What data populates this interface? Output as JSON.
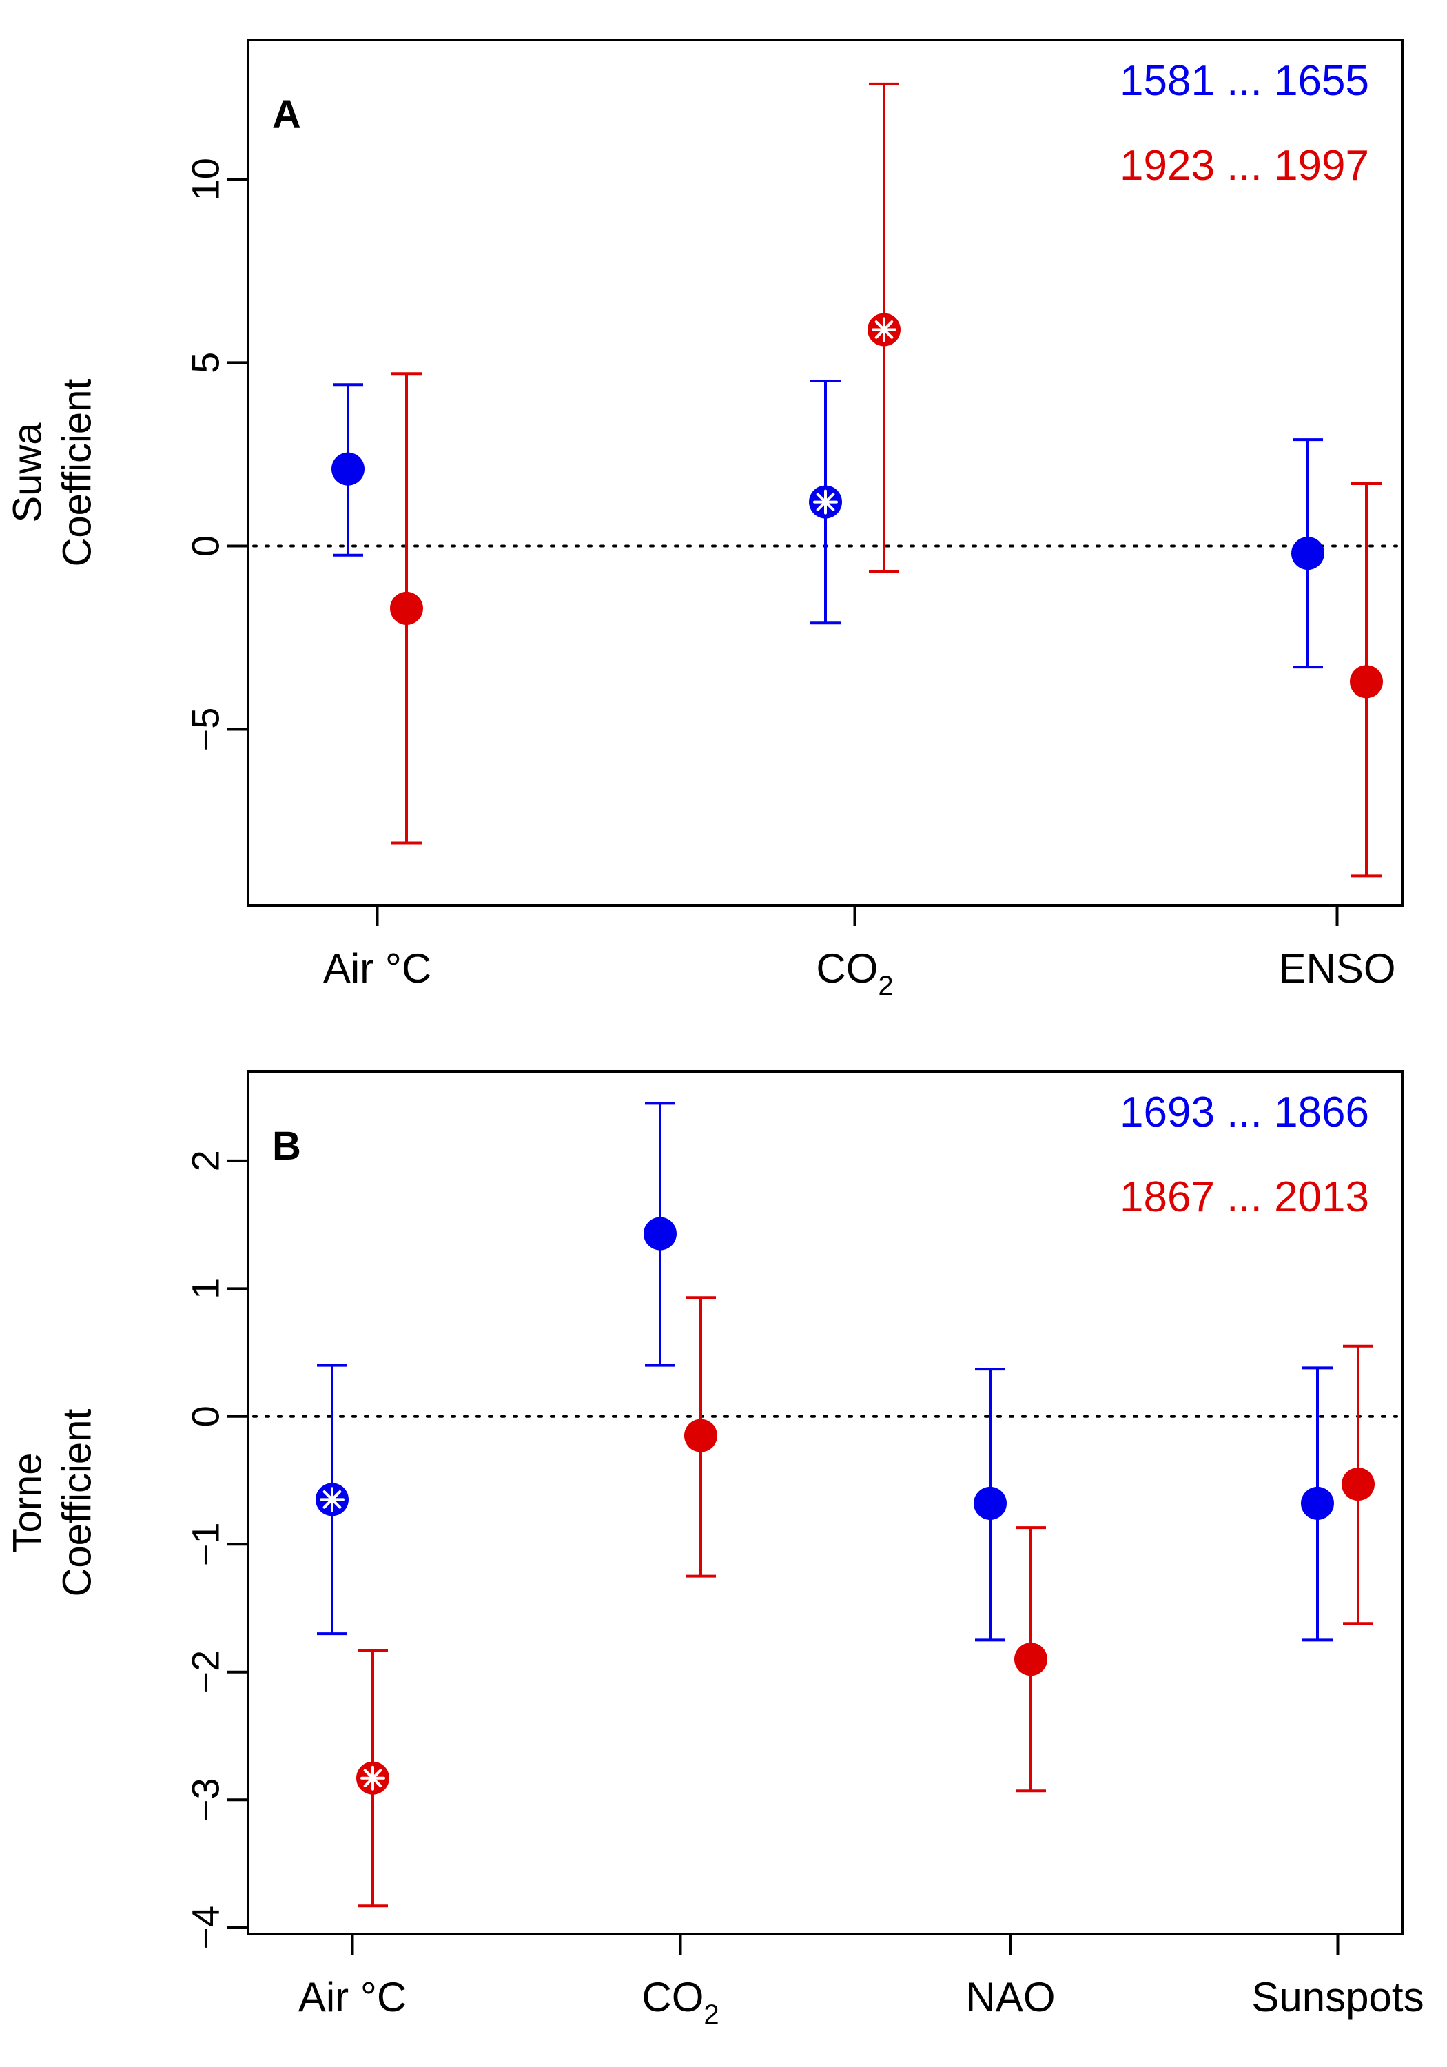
{
  "chart_data": [
    {
      "type": "scatter",
      "panel_label": "A",
      "ylabel_line1": "Suwa",
      "ylabel_line2": "Coefficient",
      "ylim": [
        -9.8,
        13.8
      ],
      "yticks": [
        -5,
        0,
        5,
        10
      ],
      "ytick_labels": [
        "−5",
        "0",
        "5",
        "10"
      ],
      "reference_line": 0,
      "categories": [
        {
          "label": "Air  °C",
          "sub": ""
        },
        {
          "label": "CO",
          "sub": "2"
        },
        {
          "label": "ENSO",
          "sub": ""
        }
      ],
      "series": [
        {
          "name": "1581 ... 1655",
          "color": "#0000ee",
          "points": [
            {
              "category": 0,
              "estimate": 2.1,
              "lower": -0.25,
              "upper": 4.4,
              "marker": "filled"
            },
            {
              "category": 1,
              "estimate": 1.2,
              "lower": -2.1,
              "upper": 4.5,
              "marker": "asterisk"
            },
            {
              "category": 2,
              "estimate": -0.2,
              "lower": -3.3,
              "upper": 2.9,
              "marker": "filled"
            }
          ]
        },
        {
          "name": "1923 ... 1997",
          "color": "#dd0000",
          "points": [
            {
              "category": 0,
              "estimate": -1.7,
              "lower": -8.1,
              "upper": 4.7,
              "marker": "filled"
            },
            {
              "category": 1,
              "estimate": 5.9,
              "lower": -0.7,
              "upper": 12.6,
              "marker": "asterisk"
            },
            {
              "category": 2,
              "estimate": -3.7,
              "lower": -9.0,
              "upper": 1.7,
              "marker": "filled"
            }
          ]
        }
      ]
    },
    {
      "type": "scatter",
      "panel_label": "B",
      "ylabel_line1": "Torne",
      "ylabel_line2": "Coefficient",
      "ylim": [
        -4.05,
        2.7
      ],
      "yticks": [
        -4,
        -3,
        -2,
        -1,
        0,
        1,
        2
      ],
      "ytick_labels": [
        "−4",
        "−3",
        "−2",
        "−1",
        "0",
        "1",
        "2"
      ],
      "reference_line": 0,
      "categories": [
        {
          "label": "Air  °C",
          "sub": ""
        },
        {
          "label": "CO",
          "sub": "2"
        },
        {
          "label": "NAO",
          "sub": ""
        },
        {
          "label": "Sunspots",
          "sub": ""
        }
      ],
      "series": [
        {
          "name": "1693 ... 1866",
          "color": "#0000ee",
          "points": [
            {
              "category": 0,
              "estimate": -0.65,
              "lower": -1.7,
              "upper": 0.4,
              "marker": "asterisk"
            },
            {
              "category": 1,
              "estimate": 1.43,
              "lower": 0.4,
              "upper": 2.45,
              "marker": "filled"
            },
            {
              "category": 2,
              "estimate": -0.68,
              "lower": -1.75,
              "upper": 0.37,
              "marker": "filled"
            },
            {
              "category": 3,
              "estimate": -0.68,
              "lower": -1.75,
              "upper": 0.38,
              "marker": "filled"
            }
          ]
        },
        {
          "name": "1867 ... 2013",
          "color": "#dd0000",
          "points": [
            {
              "category": 0,
              "estimate": -2.83,
              "lower": -3.83,
              "upper": -1.83,
              "marker": "asterisk"
            },
            {
              "category": 1,
              "estimate": -0.15,
              "lower": -1.25,
              "upper": 0.93,
              "marker": "filled"
            },
            {
              "category": 2,
              "estimate": -1.9,
              "lower": -2.93,
              "upper": -0.87,
              "marker": "filled"
            },
            {
              "category": 3,
              "estimate": -0.53,
              "lower": -1.62,
              "upper": 0.55,
              "marker": "filled"
            }
          ]
        }
      ]
    }
  ]
}
